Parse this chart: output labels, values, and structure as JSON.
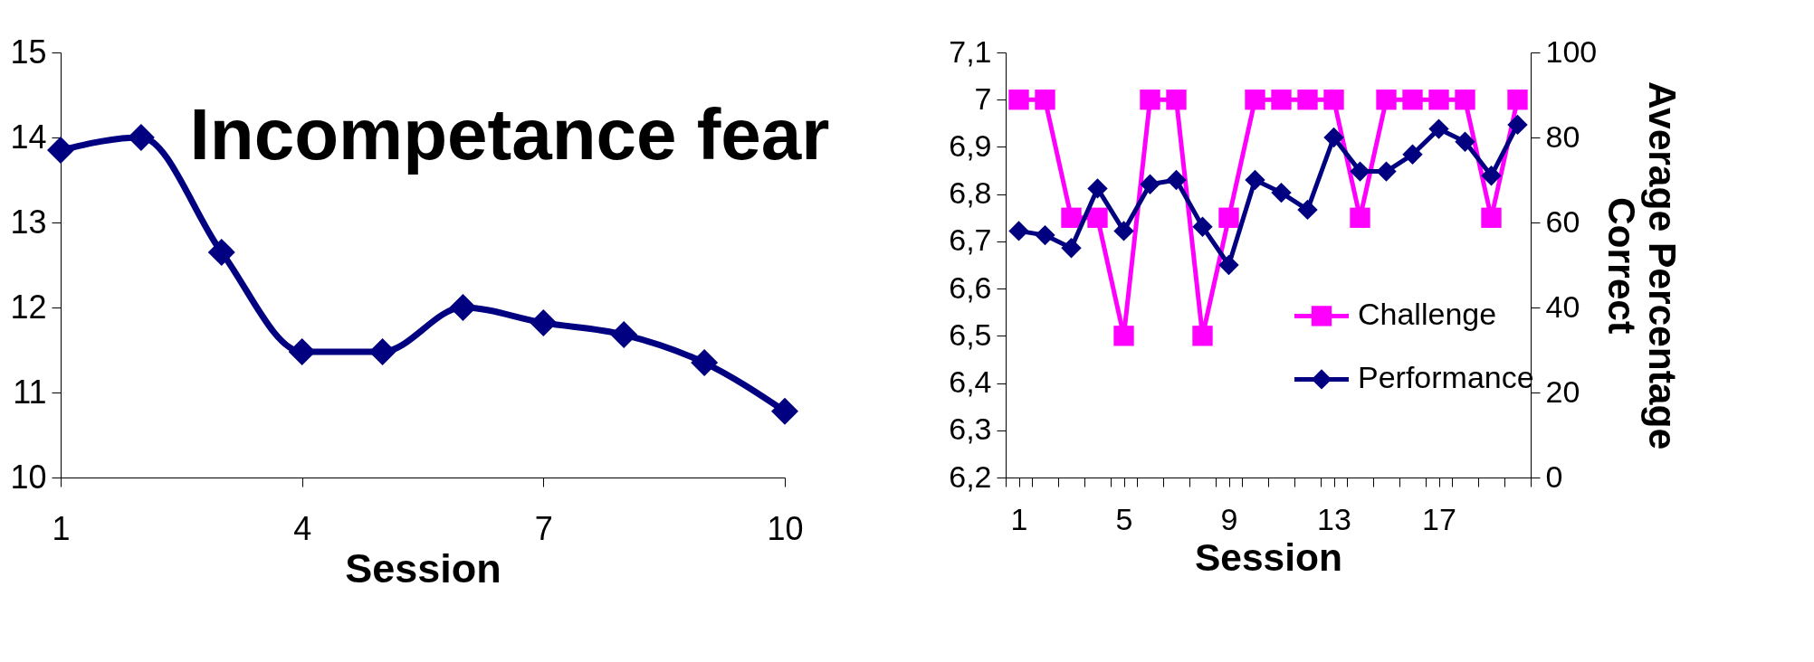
{
  "chart_data": [
    {
      "type": "line",
      "xlabel": "Session",
      "annotations": [
        "Incompetance fear"
      ],
      "x": [
        1,
        2,
        3,
        4,
        5,
        6,
        7,
        8,
        9,
        10
      ],
      "series": [
        {
          "color": "#000080",
          "marker": "diamond",
          "values": [
            13.85,
            14.0,
            12.65,
            11.48,
            11.48,
            12.0,
            11.82,
            11.68,
            11.35,
            10.78
          ]
        }
      ],
      "xlim": [
        1,
        10
      ],
      "xticks": [
        1,
        4,
        7,
        10
      ],
      "ylim": [
        10,
        15
      ],
      "yticks": [
        10,
        11,
        12,
        13,
        14,
        15
      ],
      "grid": false
    },
    {
      "type": "line",
      "xlabel": "Session",
      "y2label": "Average Percentage\nCorrect",
      "legend": "bottom right",
      "x": [
        1,
        2,
        3,
        4,
        5,
        6,
        7,
        8,
        9,
        10,
        11,
        12,
        13,
        14,
        15,
        16,
        17,
        18,
        19,
        20
      ],
      "series": [
        {
          "name": "Challenge",
          "color": "#ff00ff",
          "marker": "square",
          "values": [
            7,
            7,
            6.75,
            6.75,
            6.5,
            7,
            7,
            6.5,
            6.75,
            7,
            7,
            7,
            7,
            6.75,
            7,
            7,
            7,
            7,
            6.75,
            7
          ]
        },
        {
          "name": "Performance",
          "color": "#000080",
          "marker": "diamond",
          "axis": "y2",
          "values": [
            58,
            57,
            54,
            68,
            58,
            69,
            70,
            59,
            50,
            70,
            67,
            63,
            80,
            72,
            72,
            76,
            82,
            79,
            71,
            83
          ]
        }
      ],
      "xlim": [
        0.5,
        20.5
      ],
      "xticks": [
        {
          "value": 0.5,
          "label": null
        },
        1,
        {
          "value": 1.5,
          "label": null
        },
        {
          "value": 2.5,
          "label": null
        },
        {
          "value": 3.5,
          "label": null
        },
        {
          "value": 4.5,
          "label": null
        },
        5,
        {
          "value": 5.5,
          "label": null
        },
        {
          "value": 6.5,
          "label": null
        },
        {
          "value": 7.5,
          "label": null
        },
        {
          "value": 8.5,
          "label": null
        },
        9,
        {
          "value": 9.5,
          "label": null
        },
        {
          "value": 10.5,
          "label": null
        },
        {
          "value": 11.5,
          "label": null
        },
        {
          "value": 12.5,
          "label": null
        },
        13,
        {
          "value": 13.5,
          "label": null
        },
        {
          "value": 14.5,
          "label": null
        },
        {
          "value": 15.5,
          "label": null
        },
        {
          "value": 16.5,
          "label": null
        },
        17,
        {
          "value": 17.5,
          "label": null
        },
        {
          "value": 18.5,
          "label": null
        },
        {
          "value": 19.5,
          "label": null
        },
        {
          "value": 20.5,
          "label": null
        }
      ],
      "ylim": [
        6.2,
        7.1
      ],
      "yticks": [
        {
          "value": 6.2,
          "label": "6,2"
        },
        {
          "value": 6.3,
          "label": "6,3"
        },
        {
          "value": 6.4,
          "label": "6,4"
        },
        {
          "value": 6.5,
          "label": "6,5"
        },
        {
          "value": 6.6,
          "label": "6,6"
        },
        {
          "value": 6.7,
          "label": "6,7"
        },
        {
          "value": 6.8,
          "label": "6,8"
        },
        {
          "value": 6.9,
          "label": "6,9"
        },
        7,
        {
          "value": 7.1,
          "label": "7,1"
        }
      ],
      "y2lim": [
        0,
        100
      ],
      "y2ticks": [
        0,
        20,
        40,
        60,
        80,
        100
      ],
      "grid": false
    }
  ]
}
